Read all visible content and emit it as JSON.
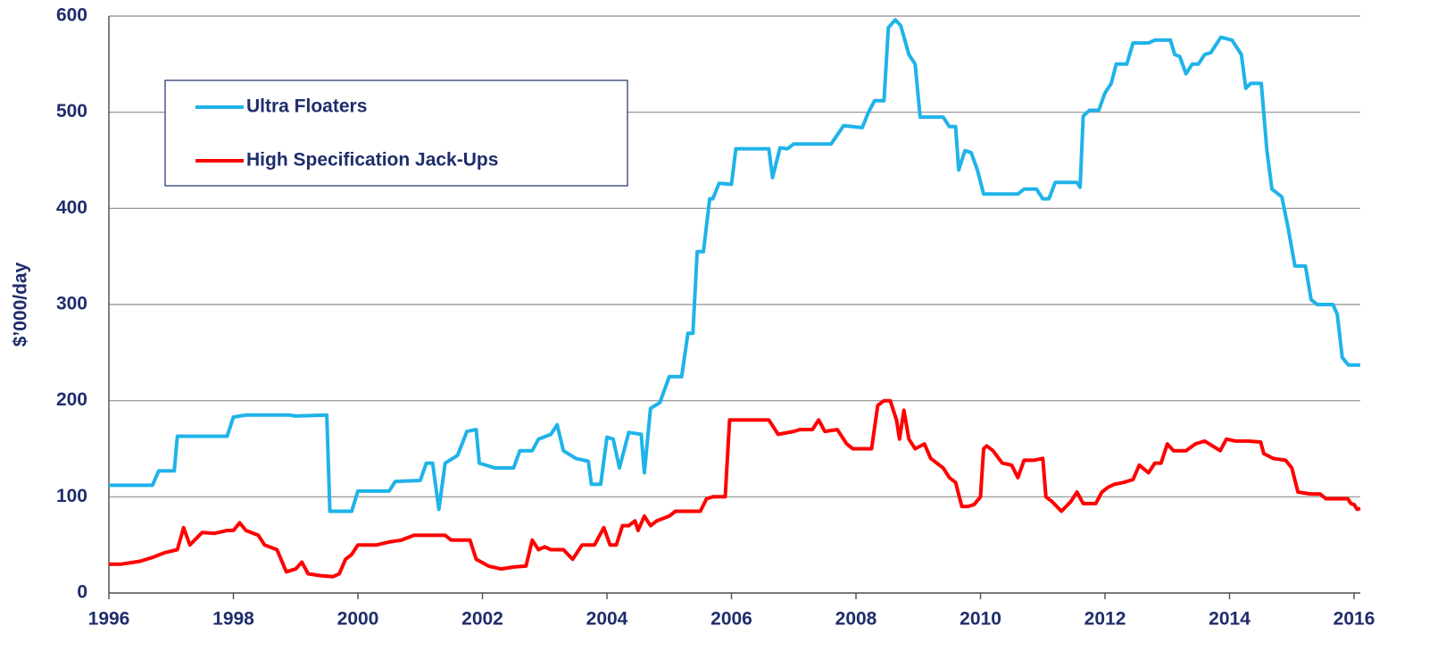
{
  "chart_data": {
    "type": "line",
    "y_label": "$’000/day",
    "xlim": [
      1996,
      2016.1
    ],
    "xticks": [
      1996,
      1998,
      2000,
      2002,
      2004,
      2006,
      2008,
      2010,
      2012,
      2014,
      2016
    ],
    "ylim": [
      0,
      600
    ],
    "yticks": [
      0,
      100,
      200,
      300,
      400,
      500,
      600
    ],
    "grid": true,
    "legend": "upper left",
    "series": [
      {
        "name": "Ultra Floaters",
        "color": "#1fb3e9",
        "x": [
          1996,
          1996.7,
          1996.8,
          1997.05,
          1997.1,
          1997.9,
          1998.0,
          1998.2,
          1998.9,
          1999.0,
          1999.5,
          1999.55,
          1999.9,
          2000.0,
          2000.5,
          2000.6,
          2001.0,
          2001.1,
          2001.2,
          2001.3,
          2001.4,
          2001.6,
          2001.75,
          2001.9,
          2001.95,
          2002.2,
          2002.5,
          2002.6,
          2002.8,
          2002.9,
          2003.1,
          2003.2,
          2003.3,
          2003.5,
          2003.7,
          2003.75,
          2003.9,
          2004.0,
          2004.1,
          2004.2,
          2004.35,
          2004.55,
          2004.6,
          2004.7,
          2004.85,
          2005.0,
          2005.2,
          2005.3,
          2005.38,
          2005.45,
          2005.55,
          2005.65,
          2005.7,
          2005.8,
          2006.0,
          2006.07,
          2006.6,
          2006.66,
          2006.78,
          2006.9,
          2007.0,
          2007.6,
          2007.8,
          2008.1,
          2008.2,
          2008.3,
          2008.45,
          2008.52,
          2008.63,
          2008.72,
          2008.85,
          2008.95,
          2009.03,
          2009.4,
          2009.5,
          2009.6,
          2009.65,
          2009.75,
          2009.85,
          2009.95,
          2010.05,
          2010.6,
          2010.7,
          2010.9,
          2011.0,
          2011.1,
          2011.2,
          2011.55,
          2011.6,
          2011.65,
          2011.75,
          2011.9,
          2012.0,
          2012.1,
          2012.18,
          2012.35,
          2012.45,
          2012.7,
          2012.8,
          2013.05,
          2013.12,
          2013.2,
          2013.3,
          2013.4,
          2013.5,
          2013.6,
          2013.7,
          2013.86,
          2014.04,
          2014.19,
          2014.26,
          2014.34,
          2014.51,
          2014.6,
          2014.68,
          2014.84,
          2014.94,
          2015.05,
          2015.22,
          2015.31,
          2015.41,
          2015.66,
          2015.73,
          2015.81,
          2015.91,
          2016.1
        ],
        "values": [
          112,
          112,
          127,
          127,
          163,
          163,
          183,
          185,
          185,
          184,
          185,
          85,
          85,
          106,
          106,
          116,
          117,
          135,
          135,
          87,
          135,
          143,
          168,
          170,
          135,
          130,
          130,
          148,
          148,
          160,
          165,
          175,
          148,
          140,
          137,
          113,
          113,
          162,
          160,
          130,
          167,
          165,
          125,
          192,
          198,
          225,
          225,
          270,
          270,
          355,
          355,
          410,
          410,
          426,
          425,
          462,
          462,
          432,
          463,
          462,
          467,
          467,
          486,
          484,
          500,
          512,
          512,
          588,
          596,
          590,
          560,
          550,
          495,
          495,
          485,
          485,
          440,
          460,
          458,
          440,
          415,
          415,
          420,
          420,
          410,
          410,
          427,
          427,
          422,
          496,
          502,
          502,
          520,
          530,
          550,
          550,
          572,
          572,
          575,
          575,
          560,
          558,
          540,
          550,
          550,
          560,
          562,
          578,
          575,
          560,
          525,
          530,
          530,
          460,
          420,
          412,
          380,
          340,
          340,
          305,
          300,
          300,
          290,
          245,
          237,
          237
        ]
      },
      {
        "name": "High Specification Jack-Ups",
        "color": "#ff0000",
        "x": [
          1996,
          1996.2,
          1996.5,
          1996.7,
          1996.9,
          1997.1,
          1997.2,
          1997.3,
          1997.5,
          1997.7,
          1997.9,
          1998.0,
          1998.1,
          1998.2,
          1998.4,
          1998.5,
          1998.7,
          1998.85,
          1999.0,
          1999.1,
          1999.2,
          1999.4,
          1999.6,
          1999.7,
          1999.8,
          1999.9,
          2000.0,
          2000.3,
          2000.5,
          2000.7,
          2000.9,
          2001.4,
          2001.5,
          2001.8,
          2001.9,
          2002.1,
          2002.3,
          2002.5,
          2002.7,
          2002.8,
          2002.9,
          2003.0,
          2003.1,
          2003.3,
          2003.45,
          2003.6,
          2003.8,
          2003.95,
          2004.05,
          2004.15,
          2004.25,
          2004.35,
          2004.45,
          2004.5,
          2004.6,
          2004.7,
          2004.8,
          2005.0,
          2005.1,
          2005.5,
          2005.6,
          2005.7,
          2005.9,
          2005.97,
          2006.6,
          2006.75,
          2007.0,
          2007.1,
          2007.3,
          2007.4,
          2007.5,
          2007.7,
          2007.85,
          2007.95,
          2008.25,
          2008.35,
          2008.45,
          2008.55,
          2008.65,
          2008.7,
          2008.77,
          2008.85,
          2008.95,
          2009.1,
          2009.2,
          2009.4,
          2009.5,
          2009.6,
          2009.7,
          2009.8,
          2009.9,
          2010.0,
          2010.05,
          2010.1,
          2010.2,
          2010.35,
          2010.5,
          2010.6,
          2010.7,
          2010.85,
          2011.0,
          2011.05,
          2011.15,
          2011.3,
          2011.45,
          2011.55,
          2011.65,
          2011.85,
          2011.95,
          2012.05,
          2012.15,
          2012.3,
          2012.45,
          2012.55,
          2012.7,
          2012.8,
          2012.9,
          2013.0,
          2013.1,
          2013.3,
          2013.45,
          2013.6,
          2013.75,
          2013.85,
          2013.95,
          2014.1,
          2014.3,
          2014.5,
          2014.55,
          2014.7,
          2014.9,
          2015.0,
          2015.1,
          2015.3,
          2015.45,
          2015.55,
          2015.9,
          2015.95,
          2016.0,
          2016.05,
          2016.1
        ],
        "values": [
          30,
          30,
          33,
          37,
          42,
          45,
          68,
          50,
          63,
          62,
          65,
          65,
          73,
          65,
          60,
          50,
          45,
          22,
          25,
          32,
          20,
          18,
          17,
          20,
          35,
          40,
          50,
          50,
          53,
          55,
          60,
          60,
          55,
          55,
          35,
          28,
          25,
          27,
          28,
          55,
          45,
          48,
          45,
          45,
          35,
          50,
          50,
          68,
          50,
          50,
          70,
          70,
          75,
          65,
          80,
          70,
          75,
          80,
          85,
          85,
          98,
          100,
          100,
          180,
          180,
          165,
          168,
          170,
          170,
          180,
          168,
          170,
          155,
          150,
          150,
          195,
          200,
          200,
          180,
          160,
          190,
          160,
          150,
          155,
          140,
          130,
          120,
          115,
          90,
          90,
          92,
          100,
          150,
          153,
          148,
          135,
          133,
          120,
          138,
          138,
          140,
          100,
          95,
          85,
          95,
          105,
          93,
          93,
          105,
          110,
          113,
          115,
          118,
          133,
          125,
          135,
          135,
          155,
          148,
          148,
          155,
          158,
          152,
          148,
          160,
          158,
          158,
          157,
          145,
          140,
          138,
          130,
          105,
          103,
          103,
          98,
          98,
          93,
          92,
          87,
          88
        ]
      }
    ]
  }
}
